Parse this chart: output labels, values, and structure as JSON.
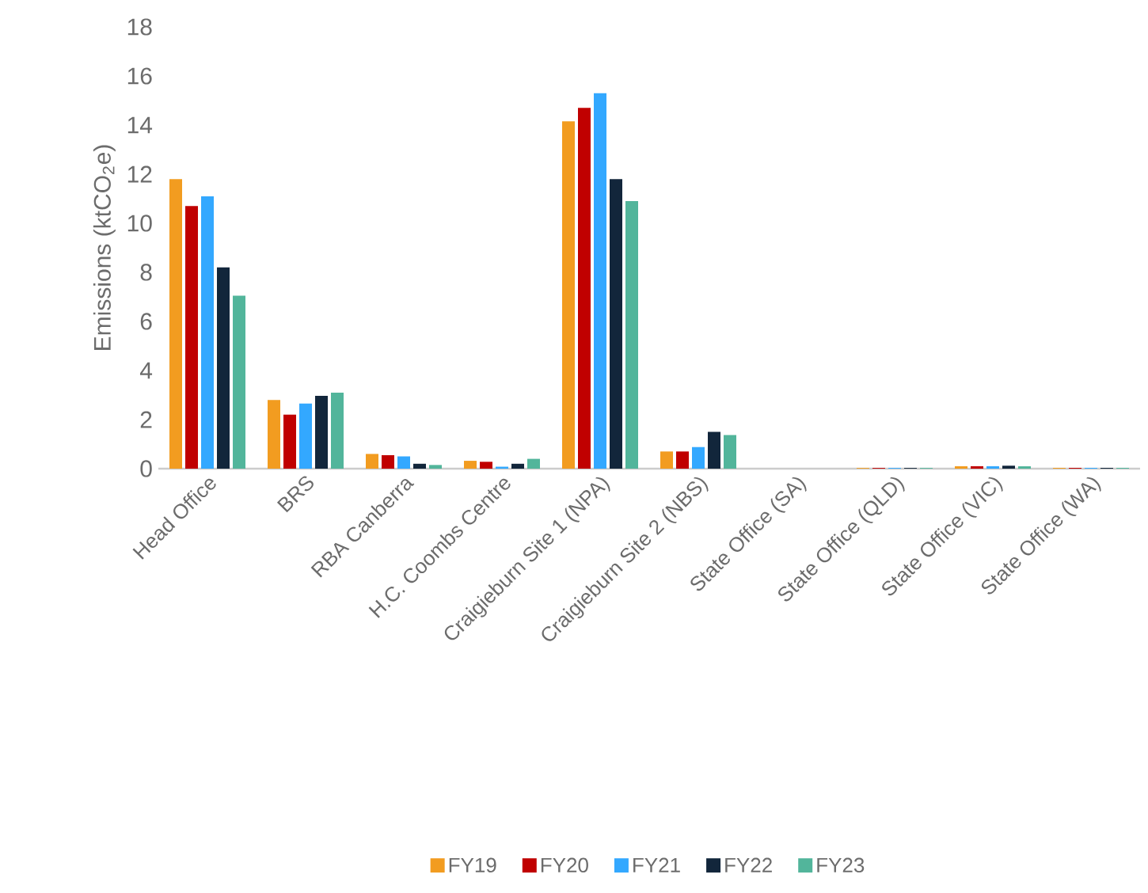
{
  "chart_data": {
    "type": "bar",
    "ylabel": "Emissions (ktCO$_{2}$e)",
    "categories": [
      "Head Office",
      "BRS",
      "RBA Canberra",
      "H.C. Coombs Centre",
      "Craigieburn Site 1 (NPA)",
      "Craigieburn Site 2 (NBS)",
      "State Office (SA)",
      "State Office (QLD)",
      "State Office (VIC)",
      "State Office (WA)"
    ],
    "series": [
      {
        "name": "FY19",
        "color": "#f29c20",
        "values": [
          11.8,
          2.8,
          0.6,
          0.32,
          14.15,
          0.7,
          null,
          0.03,
          0.1,
          0.03
        ]
      },
      {
        "name": "FY20",
        "color": "#c00000",
        "values": [
          10.7,
          2.2,
          0.55,
          0.28,
          14.7,
          0.7,
          null,
          0.03,
          0.1,
          0.03
        ]
      },
      {
        "name": "FY21",
        "color": "#33a8ff",
        "values": [
          11.1,
          2.65,
          0.5,
          0.08,
          15.3,
          0.88,
          null,
          0.03,
          0.1,
          0.03
        ]
      },
      {
        "name": "FY22",
        "color": "#12263b",
        "values": [
          8.2,
          2.97,
          0.2,
          0.2,
          11.8,
          1.5,
          null,
          0.03,
          0.12,
          0.03
        ]
      },
      {
        "name": "FY23",
        "color": "#52b59b",
        "values": [
          7.05,
          3.1,
          0.15,
          0.4,
          10.9,
          1.37,
          null,
          0.03,
          0.1,
          0.03
        ]
      }
    ],
    "ylim": [
      0,
      18
    ],
    "yticks": [
      0,
      2,
      4,
      6,
      8,
      10,
      12,
      14,
      16,
      18
    ],
    "legend": "bottom"
  }
}
